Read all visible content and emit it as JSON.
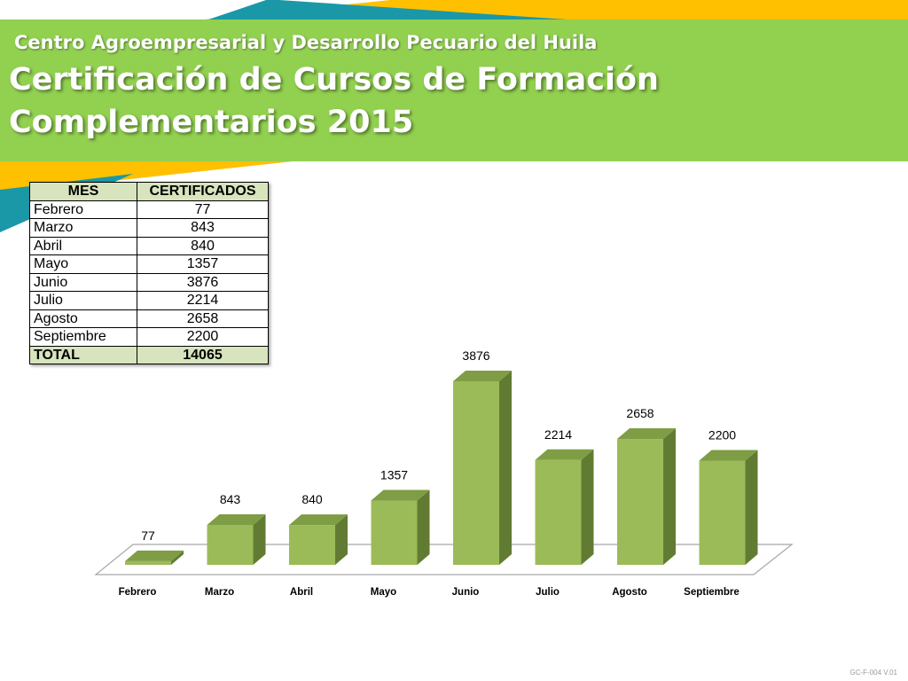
{
  "header": {
    "organization": "Centro Agroempresarial y Desarrollo Pecuario del Huila",
    "title_line1": "Certificación de Cursos de Formación",
    "title_line2": "Complementarios 2015"
  },
  "colors": {
    "header_green": "#92d050",
    "stripe_orange": "#ffc000",
    "stripe_teal": "#1b98a8",
    "table_header_bg": "#d7e4bd",
    "bar_front": "#9bbb59",
    "bar_top": "#7e9d45",
    "bar_side": "#617c32"
  },
  "table": {
    "headers": [
      "MES",
      "CERTIFICADOS"
    ],
    "rows": [
      {
        "month": "Febrero",
        "value": "77"
      },
      {
        "month": "Marzo",
        "value": "843"
      },
      {
        "month": "Abril",
        "value": "840"
      },
      {
        "month": "Mayo",
        "value": "1357"
      },
      {
        "month": "Junio",
        "value": "3876"
      },
      {
        "month": "Julio",
        "value": "2214"
      },
      {
        "month": "Agosto",
        "value": "2658"
      },
      {
        "month": "Septiembre",
        "value": "2200"
      }
    ],
    "total_label": "TOTAL",
    "total_value": "14065"
  },
  "chart_data": {
    "type": "bar",
    "style": "3d-column",
    "title": "",
    "xlabel": "",
    "ylabel": "",
    "categories": [
      "Febrero",
      "Marzo",
      "Abril",
      "Mayo",
      "Junio",
      "Julio",
      "Agosto",
      "Septiembre"
    ],
    "values": [
      77,
      843,
      840,
      1357,
      3876,
      2214,
      2658,
      2200
    ],
    "ylim": [
      0,
      3876
    ],
    "grid": false,
    "legend": "none",
    "data_labels": true
  },
  "footer": {
    "code": "GC-F-004 V.01"
  }
}
